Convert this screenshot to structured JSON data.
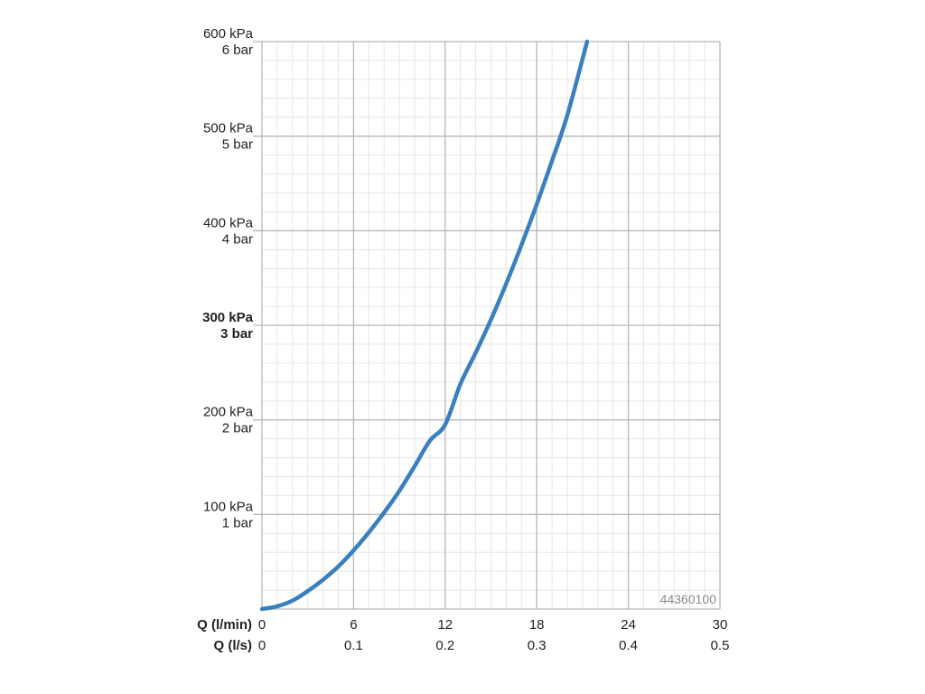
{
  "chart_data": {
    "type": "line",
    "product_code": "44360100",
    "x_axis": {
      "label_primary": "Q (l/min)",
      "label_secondary": "Q (l/s)",
      "ticks_primary": [
        "0",
        "6",
        "12",
        "18",
        "24",
        "30"
      ],
      "ticks_secondary": [
        "0",
        "0.1",
        "0.2",
        "0.3",
        "0.4",
        "0.5"
      ],
      "range": [
        0,
        30
      ],
      "unit": "l/min"
    },
    "y_axis": {
      "ticks": [
        {
          "value": 100,
          "kpa": "100 kPa",
          "bar": "1 bar",
          "bold": false
        },
        {
          "value": 200,
          "kpa": "200 kPa",
          "bar": "2 bar",
          "bold": false
        },
        {
          "value": 300,
          "kpa": "300 kPa",
          "bar": "3 bar",
          "bold": true
        },
        {
          "value": 400,
          "kpa": "400 kPa",
          "bar": "4 bar",
          "bold": false
        },
        {
          "value": 500,
          "kpa": "500 kPa",
          "bar": "5 bar",
          "bold": false
        },
        {
          "value": 600,
          "kpa": "600 kPa",
          "bar": "6 bar",
          "bold": false
        }
      ],
      "range": [
        0,
        600
      ],
      "unit": "kPa"
    },
    "grid": true,
    "line_color": "#3a7fbf",
    "series": [
      {
        "x": [
          0,
          1,
          2,
          3,
          4,
          5,
          6,
          7,
          8,
          9,
          10,
          11,
          12,
          13,
          14,
          15,
          16,
          17,
          18,
          19,
          20,
          21.3
        ],
        "y": [
          0,
          3,
          9,
          19,
          31,
          45,
          62,
          81,
          102,
          125,
          151,
          178,
          195,
          238,
          271,
          306,
          344,
          385,
          428,
          474,
          522,
          600
        ]
      }
    ]
  }
}
